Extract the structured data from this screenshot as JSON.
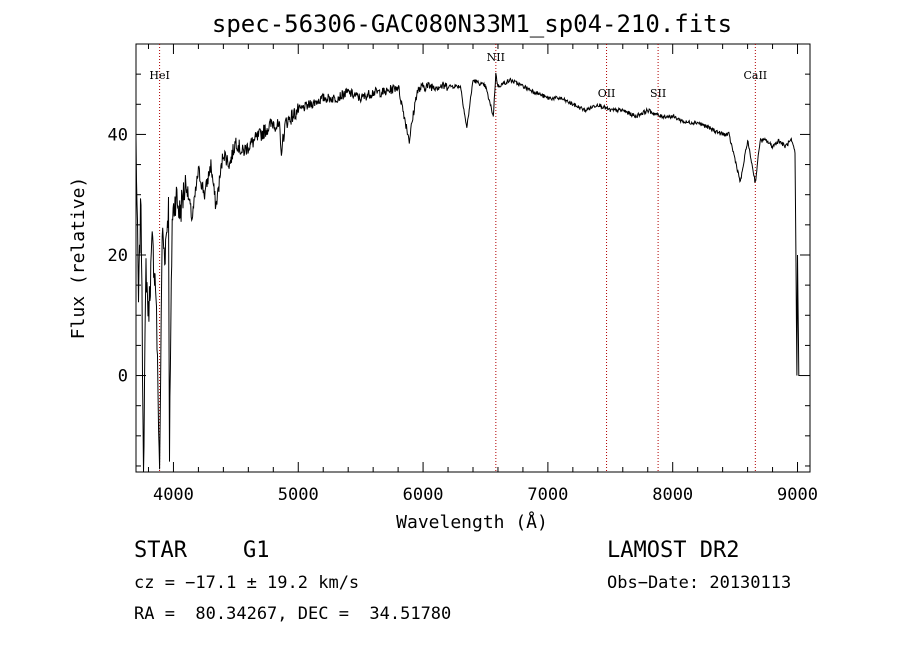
{
  "chart_data": {
    "type": "line",
    "title": "spec-56306-GAC080N33M1_sp04-210.fits",
    "xlabel": "Wavelength (Å)",
    "ylabel": "Flux (relative)",
    "xlim": [
      3700,
      9100
    ],
    "ylim": [
      -16,
      55
    ],
    "xticks": [
      "4000",
      "5000",
      "6000",
      "7000",
      "8000",
      "9000"
    ],
    "yticks": [
      "0",
      "20",
      "40"
    ],
    "lines": [
      {
        "name": "HeI",
        "x": 3889
      },
      {
        "name": "NII",
        "x": 6583
      },
      {
        "name": "OII",
        "x": 7470
      },
      {
        "name": "SII",
        "x": 7883
      },
      {
        "name": "CaII",
        "x": 8662
      }
    ],
    "series": [
      {
        "name": "flux",
        "x": [
          3700,
          3720,
          3740,
          3760,
          3780,
          3800,
          3830,
          3860,
          3889,
          3910,
          3930,
          3960,
          3968,
          3990,
          4020,
          4050,
          4100,
          4150,
          4200,
          4250,
          4300,
          4340,
          4400,
          4450,
          4500,
          4550,
          4600,
          4650,
          4700,
          4750,
          4800,
          4850,
          4861,
          4900,
          4950,
          5000,
          5100,
          5200,
          5300,
          5400,
          5500,
          5600,
          5700,
          5800,
          5890,
          5950,
          6000,
          6100,
          6200,
          6300,
          6350,
          6400,
          6500,
          6563,
          6583,
          6600,
          6700,
          6800,
          6900,
          7000,
          7100,
          7200,
          7300,
          7400,
          7500,
          7600,
          7700,
          7800,
          7900,
          8000,
          8100,
          8200,
          8300,
          8400,
          8450,
          8498,
          8542,
          8600,
          8662,
          8700,
          8750,
          8800,
          8850,
          8900,
          8950,
          8980,
          8995,
          9000,
          9010,
          9020
        ],
        "y": [
          39,
          12,
          30,
          -16,
          18,
          10,
          22,
          14,
          -16,
          24,
          20,
          28,
          -12,
          26,
          30,
          27,
          32,
          26,
          34,
          30,
          35,
          28,
          37,
          35,
          39,
          37,
          38,
          39,
          40,
          41,
          42,
          41,
          37,
          42,
          43,
          44,
          45,
          46,
          46,
          47,
          46,
          47,
          47,
          48,
          39,
          47,
          48,
          48,
          48,
          48,
          41,
          49,
          48,
          43,
          50,
          48,
          49,
          48,
          47,
          46,
          46,
          45,
          44,
          45,
          44,
          44,
          43,
          44,
          43,
          43,
          42,
          42,
          41,
          40,
          40,
          36,
          32,
          39,
          32,
          39,
          39,
          38,
          39,
          38,
          39,
          37,
          0,
          20,
          0,
          0
        ]
      }
    ]
  },
  "info": {
    "object_class": "STAR",
    "subclass": "G1",
    "survey": "LAMOST DR2",
    "cz": "cz = −17.1 ± 19.2 km/s",
    "obs_date": "Obs−Date: 20130113",
    "coords": "RA =  80.34267, DEC =  34.51780"
  }
}
